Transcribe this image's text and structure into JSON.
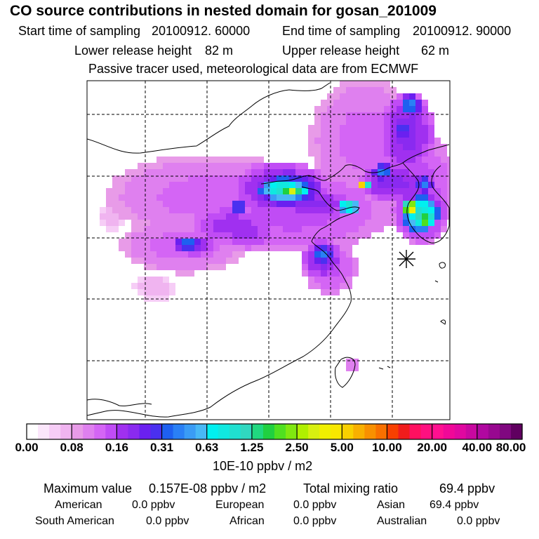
{
  "title": "CO  source contributions in nested domain for gosan_201009",
  "header": {
    "start_label": "Start time of sampling",
    "start_value": "20100912. 60000",
    "end_label": "End time of sampling",
    "end_value": "20100912. 90000",
    "lower_label": "Lower release height",
    "lower_value": "82 m",
    "upper_label": "Upper release height",
    "upper_value": "62 m",
    "note": "Passive tracer used, meteorological data are from ECMWF"
  },
  "colors": {
    "frame": "#000000",
    "coast": "#000000",
    "grid": "#000000"
  },
  "chart_data": {
    "type": "heatmap",
    "title": "CO  source contributions in nested domain for gosan_201009",
    "units": "10E-10 ppbv / m2",
    "colorbar_ticks": [
      "0.00",
      "0.08",
      "0.16",
      "0.31",
      "0.63",
      "1.25",
      "2.50",
      "5.00",
      "10.00",
      "20.00",
      "40.00",
      "80.00"
    ],
    "colorbar_levels": [
      0,
      0.08,
      0.16,
      0.31,
      0.63,
      1.25,
      2.5,
      5,
      10,
      20,
      40,
      80
    ],
    "colorbar_colors": [
      "#ffffff",
      "#fbe6fb",
      "#f6cdf6",
      "#f0b4f0",
      "#e89be8",
      "#df80ef",
      "#d465f5",
      "#c04cf5",
      "#a030f0",
      "#8a2af0",
      "#6a20f0",
      "#4a30f0",
      "#1e60f0",
      "#2a80f5",
      "#3a9cf5",
      "#48b8f5",
      "#00f0f0",
      "#10e8e0",
      "#20e0d0",
      "#30d8c0",
      "#20d880",
      "#20d040",
      "#50e020",
      "#80e810",
      "#b0f000",
      "#d8f010",
      "#f0f000",
      "#f8e800",
      "#f8d000",
      "#f8b000",
      "#f89000",
      "#f87000",
      "#f84000",
      "#f01c1c",
      "#ff1060",
      "#ff1080",
      "#ff1090",
      "#f00898",
      "#e008a0",
      "#c808a0",
      "#b008a0",
      "#980890",
      "#800880",
      "#600060"
    ],
    "receptor_marker": "gosan (asterisk)",
    "grid": true
  },
  "summary": {
    "max_label": "Maximum value",
    "max_value": "0.157E-08 ppbv / m2",
    "total_label": "Total mixing ratio",
    "total_value": "69.4 ppbv",
    "regions": [
      {
        "name": "American",
        "value": "0.0 ppbv"
      },
      {
        "name": "European",
        "value": "0.0 ppbv"
      },
      {
        "name": "Asian",
        "value": "69.4 ppbv"
      },
      {
        "name": "South American",
        "value": "0.0 ppbv"
      },
      {
        "name": "African",
        "value": "0.0 ppbv"
      },
      {
        "name": "Australian",
        "value": "0.0 ppbv"
      }
    ]
  }
}
